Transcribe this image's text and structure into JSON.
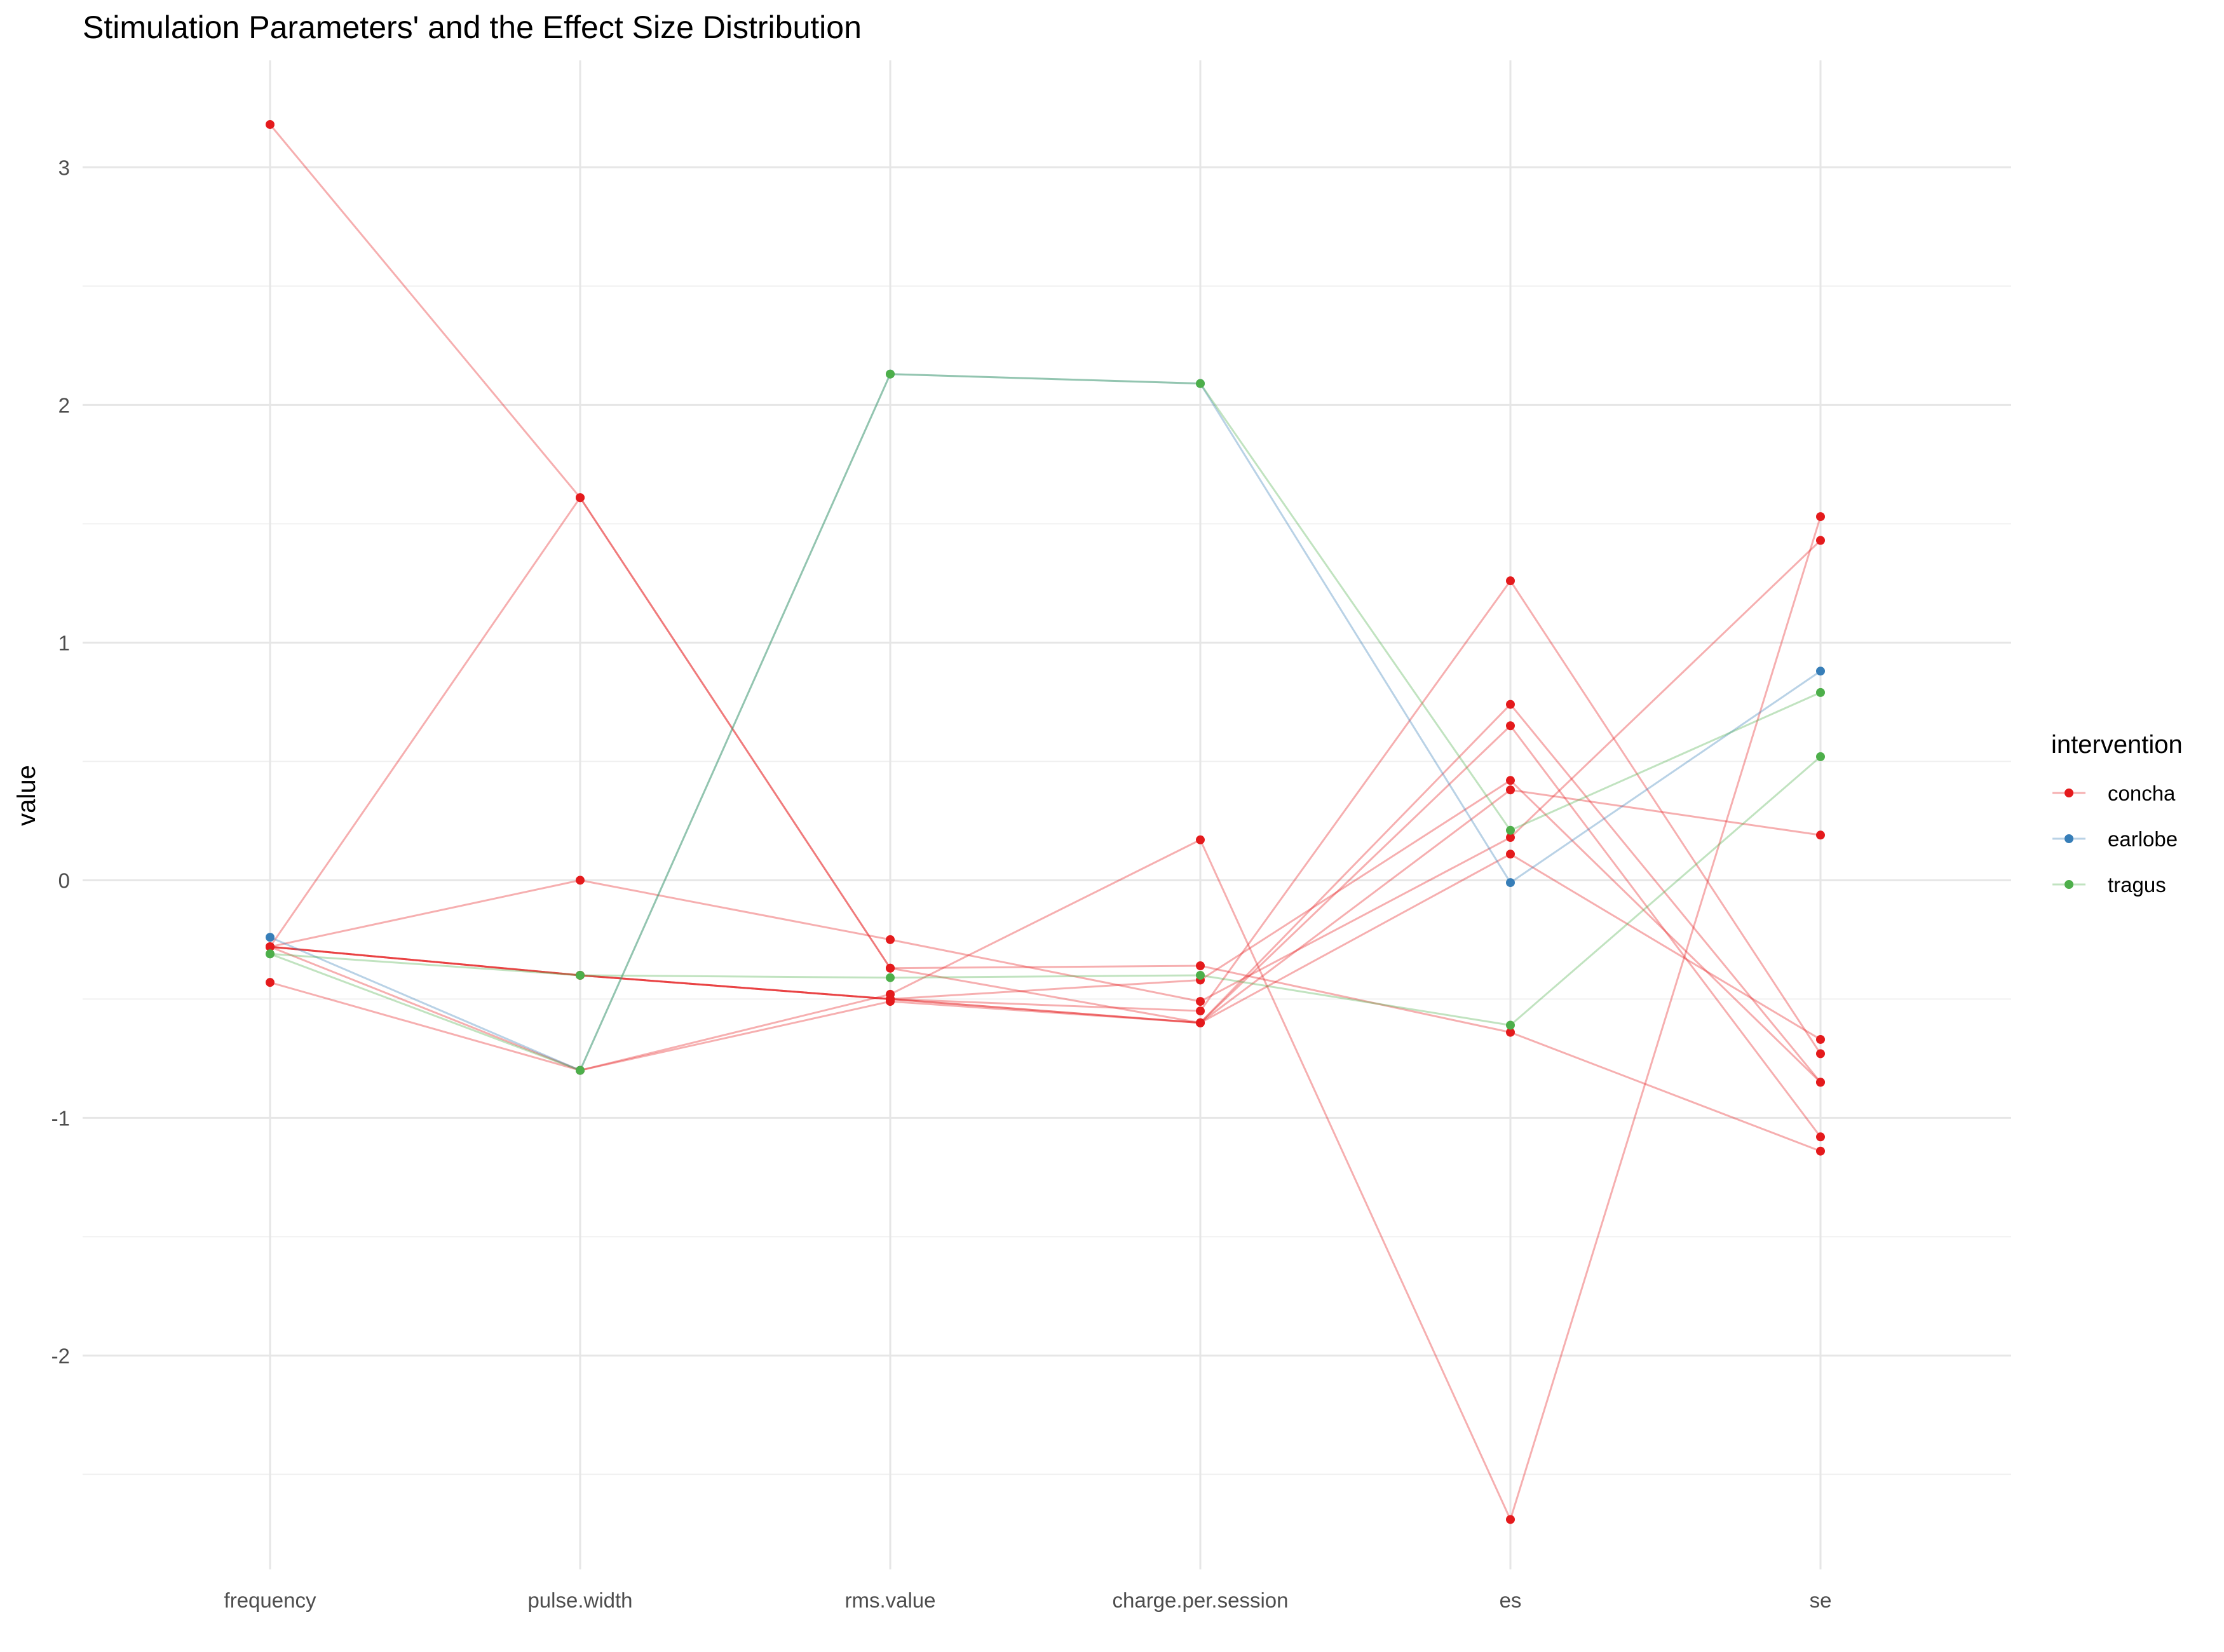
{
  "chart_data": {
    "type": "line",
    "title": "Stimulation Parameters' and the Effect Size Distribution",
    "xlabel": "",
    "ylabel": "value",
    "categories": [
      "frequency",
      "pulse.width",
      "rms.value",
      "charge.per.session",
      "es",
      "se"
    ],
    "ylim": [
      -2.9,
      3.45
    ],
    "y_ticks": [
      -2,
      -1,
      0,
      1,
      2,
      3
    ],
    "grid": true,
    "legend": {
      "title": "intervention",
      "position": "right",
      "entries": [
        {
          "name": "concha",
          "color": "#E41A1C"
        },
        {
          "name": "earlobe",
          "color": "#377EB8"
        },
        {
          "name": "tragus",
          "color": "#4DAF4A"
        }
      ]
    },
    "series": [
      {
        "name": "concha",
        "values": [
          3.18,
          1.61,
          -0.37,
          -0.36,
          -0.64,
          -1.14
        ]
      },
      {
        "name": "concha",
        "values": [
          -0.28,
          1.61,
          -0.37,
          -0.6,
          0.74,
          -0.85
        ]
      },
      {
        "name": "concha",
        "values": [
          -0.28,
          0.0,
          -0.25,
          -0.51,
          0.18,
          1.43
        ]
      },
      {
        "name": "concha",
        "values": [
          -0.28,
          -0.4,
          -0.5,
          -0.6,
          0.11,
          -0.67
        ]
      },
      {
        "name": "concha",
        "values": [
          -0.28,
          -0.4,
          -0.5,
          -0.6,
          0.65,
          -1.08
        ]
      },
      {
        "name": "concha",
        "values": [
          -0.28,
          -0.4,
          -0.5,
          -0.55,
          1.26,
          -0.73
        ]
      },
      {
        "name": "concha",
        "values": [
          -0.28,
          -0.8,
          -0.48,
          0.17,
          -2.69,
          1.53
        ]
      },
      {
        "name": "concha",
        "values": [
          -0.43,
          -0.8,
          -0.51,
          -0.6,
          0.38,
          0.19
        ]
      },
      {
        "name": "concha",
        "values": [
          -0.28,
          -0.4,
          -0.5,
          -0.42,
          0.42,
          -0.85
        ]
      },
      {
        "name": "earlobe",
        "values": [
          -0.24,
          -0.8,
          2.13,
          2.09,
          -0.01,
          0.88
        ]
      },
      {
        "name": "tragus",
        "values": [
          -0.31,
          -0.8,
          2.13,
          2.09,
          0.21,
          0.79
        ]
      },
      {
        "name": "tragus",
        "values": [
          -0.31,
          -0.4,
          -0.41,
          -0.4,
          -0.61,
          0.52
        ]
      }
    ]
  }
}
